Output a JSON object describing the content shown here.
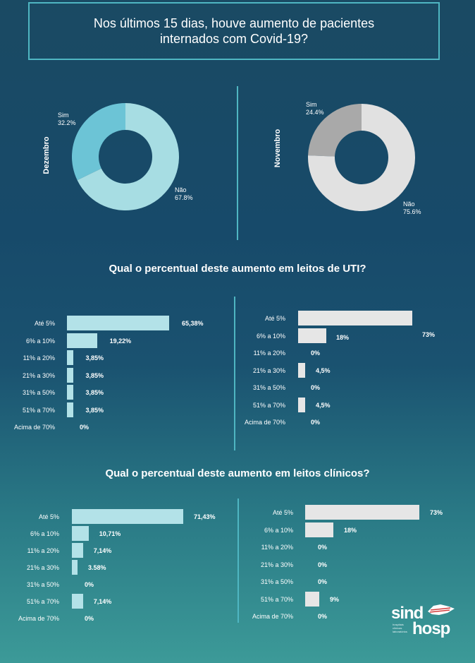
{
  "header": {
    "line1": "Nos últimos 15 dias, houve aumento de pacientes",
    "line2": "internados com Covid-19?"
  },
  "colors": {
    "cyan_main": "#a7dde3",
    "cyan_dark": "#6cc4d6",
    "gray_main": "#e1e1e1",
    "gray_dark": "#a9a9a9",
    "cyan_bar": "#b3e2e8",
    "gray_bar": "#e6e6e6"
  },
  "chart_data": [
    {
      "type": "pie",
      "id": "donut-dezembro",
      "title": "Dezembro",
      "slices": [
        {
          "label": "Sim",
          "value": 32.2,
          "value_text": "32.2%"
        },
        {
          "label": "Não",
          "value": 67.8,
          "value_text": "67.8%"
        }
      ]
    },
    {
      "type": "pie",
      "id": "donut-novembro",
      "title": "Novembro",
      "slices": [
        {
          "label": "Sim",
          "value": 24.4,
          "value_text": "24.4%"
        },
        {
          "label": "Não",
          "value": 75.6,
          "value_text": "75.6%"
        }
      ]
    },
    {
      "type": "bar",
      "id": "uti-dezembro",
      "section_title": "Qual o percentual deste aumento em leitos de UTI?",
      "categories": [
        "Até 5%",
        "6% a 10%",
        "11% a 20%",
        "21% a 30%",
        "31% a 50%",
        "51% a 70%",
        "Acima de 70%"
      ],
      "values": [
        65.38,
        19.22,
        3.85,
        3.85,
        3.85,
        3.85,
        0
      ],
      "value_labels": [
        "65,38%",
        "19,22%",
        "3,85%",
        "3,85%",
        "3,85%",
        "3,85%",
        "0%"
      ]
    },
    {
      "type": "bar",
      "id": "uti-novembro",
      "categories": [
        "Até 5%",
        "6% a 10%",
        "11% a 20%",
        "21% a 30%",
        "31% a 50%",
        "51% a 70%",
        "Acima de 70%"
      ],
      "values": [
        73,
        18,
        0,
        4.5,
        0,
        4.5,
        0
      ],
      "value_labels": [
        "73%",
        "18%",
        "0%",
        "4,5%",
        "0%",
        "4,5%",
        "0%"
      ]
    },
    {
      "type": "bar",
      "id": "clinicos-dezembro",
      "section_title": "Qual o percentual deste aumento em leitos clínicos?",
      "categories": [
        "Até 5%",
        "6% a 10%",
        "11% a 20%",
        "21% a 30%",
        "31% a 50%",
        "51% a 70%",
        "Acima de 70%"
      ],
      "values": [
        71.43,
        10.71,
        7.14,
        3.58,
        0,
        7.14,
        0
      ],
      "value_labels": [
        "71,43%",
        "10,71%",
        "7,14%",
        "3.58%",
        "0%",
        "7,14%",
        "0%"
      ]
    },
    {
      "type": "bar",
      "id": "clinicos-novembro",
      "categories": [
        "Até 5%",
        "6% a 10%",
        "11% a 20%",
        "21% a 30%",
        "31% a 50%",
        "51% a 70%",
        "Acima de 70%"
      ],
      "values": [
        73,
        18,
        0,
        0,
        0,
        9,
        0
      ],
      "value_labels": [
        "73%",
        "18%",
        "0%",
        "0%",
        "0%",
        "9%",
        "0%"
      ]
    }
  ],
  "logo": {
    "line1": "sind",
    "line2": "hosp",
    "tagline": [
      "hospitais",
      "clínicas",
      "laboratórios"
    ]
  }
}
